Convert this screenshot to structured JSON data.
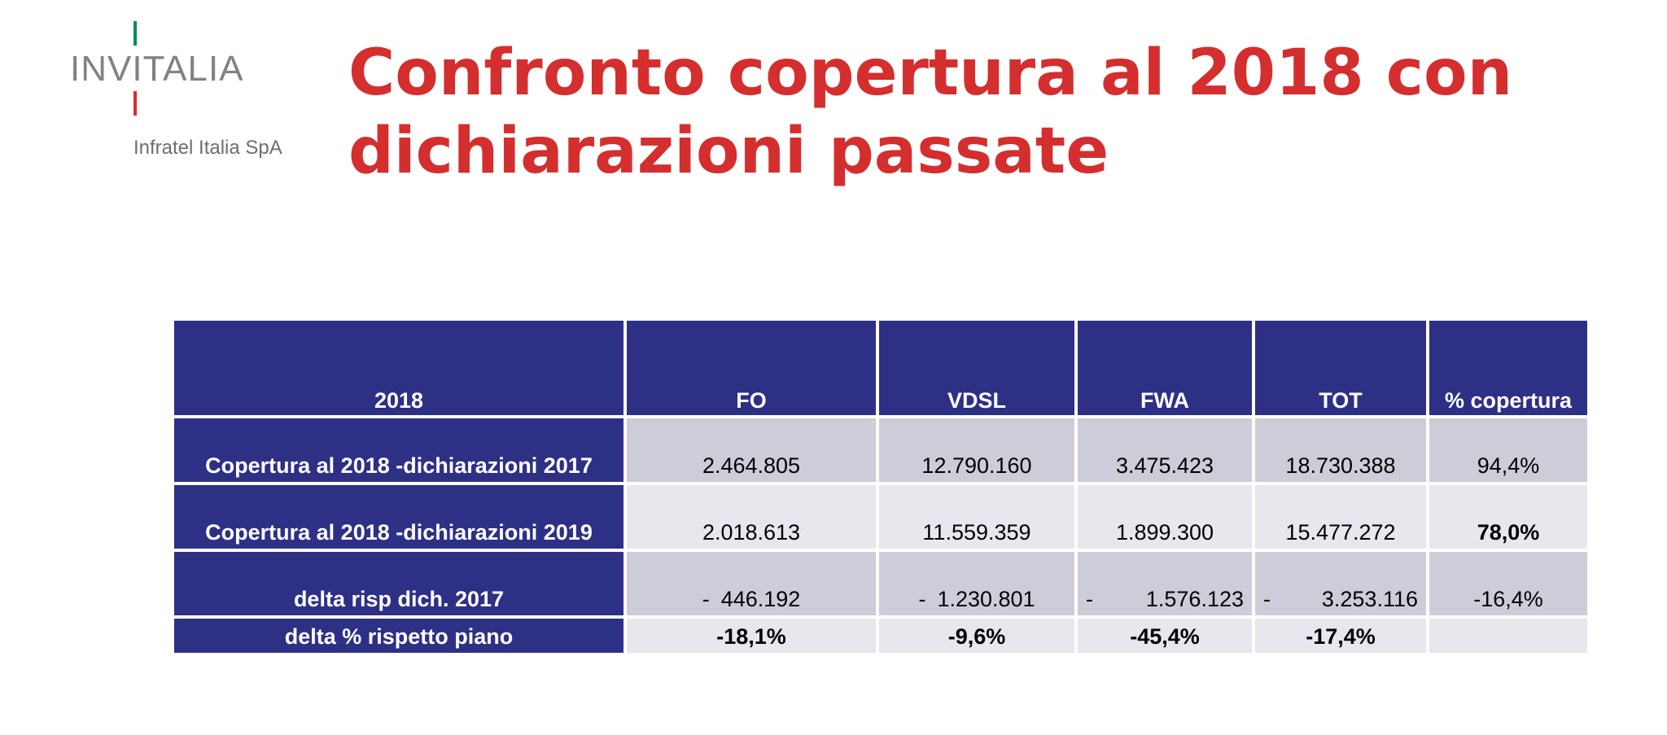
{
  "logo": {
    "name": "INVITALIA",
    "subtitle": "Infratel Italia SpA",
    "colors": {
      "green": "#0a8a5a",
      "red": "#d42e2e",
      "gray": "#808285"
    }
  },
  "title": {
    "line1": "Confronto copertura al 2018 con",
    "line2": "dichiarazioni passate"
  },
  "table": {
    "headers": [
      "2018",
      "FO",
      "VDSL",
      "FWA",
      "TOT",
      "% copertura"
    ],
    "rows": [
      {
        "label": "Copertura al 2018 -dichiarazioni 2017",
        "fo": "2.464.805",
        "vdsl": "12.790.160",
        "fwa": "3.475.423",
        "tot": "18.730.388",
        "pct": "94,4%"
      },
      {
        "label": "Copertura al 2018 -dichiarazioni 2019",
        "fo": "2.018.613",
        "vdsl": "11.559.359",
        "fwa": "1.899.300",
        "tot": "15.477.272",
        "pct": "78,0%"
      },
      {
        "label": "delta risp dich. 2017",
        "sign": "-",
        "fo": "446.192",
        "vdsl": "1.230.801",
        "fwa": "1.576.123",
        "tot": "3.253.116",
        "pct": "-16,4%"
      },
      {
        "label": "delta % rispetto piano",
        "fo": "-18,1%",
        "vdsl": "-9,6%",
        "fwa": "-45,4%",
        "tot": "-17,4%",
        "pct": ""
      }
    ],
    "colors": {
      "header": "#2e3085",
      "cell_dark": "#cdcdd9",
      "cell_light": "#e7e7ed"
    }
  }
}
